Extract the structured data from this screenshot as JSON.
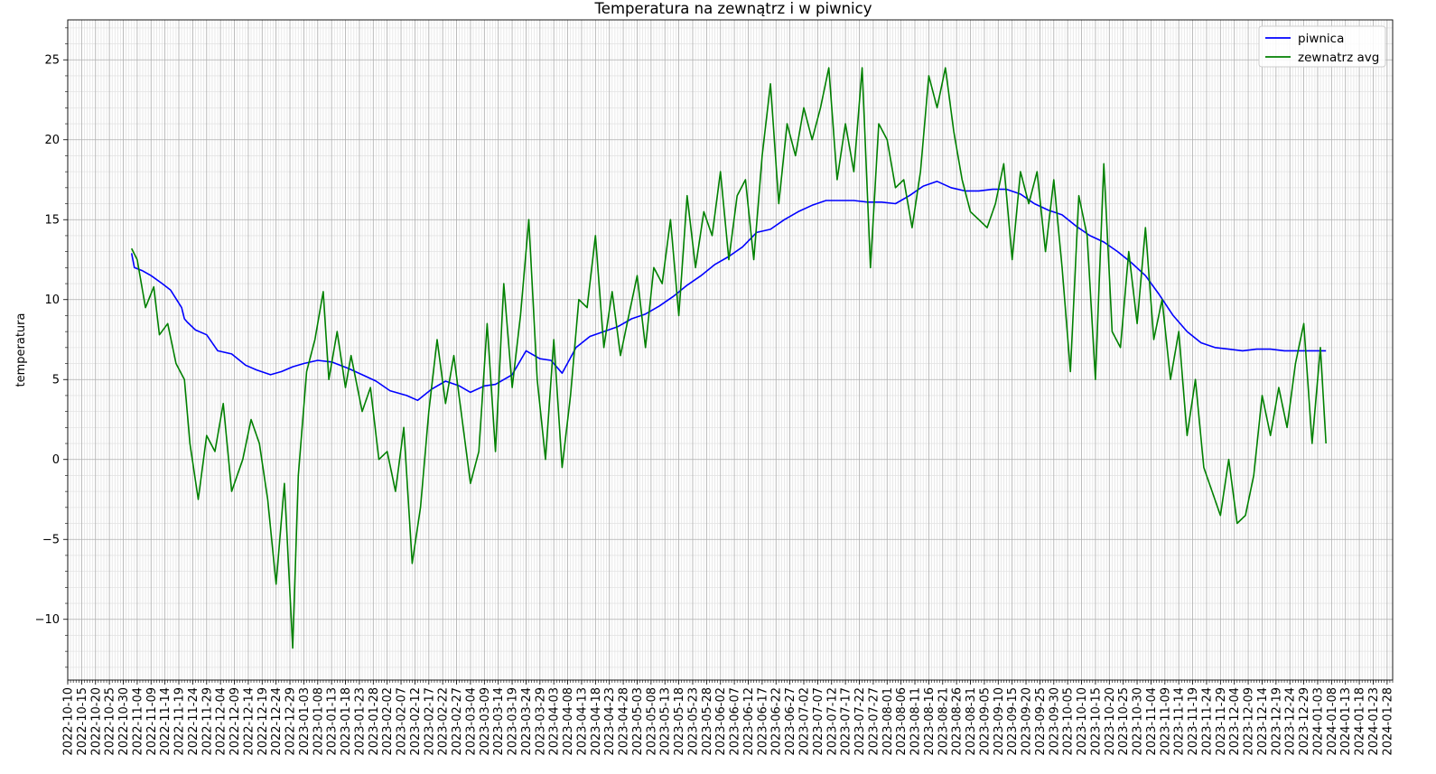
{
  "chart_data": {
    "type": "line",
    "title": "Temperatura na zewnątrz i w piwnicy",
    "xlabel": "",
    "ylabel": "temperatura",
    "x_start": "2022-10-10",
    "x_end": "2024-01-30",
    "xlim": [
      "2022-10-10",
      "2024-01-30"
    ],
    "ylim": [
      -13.8,
      27.5
    ],
    "yticks": [
      -10,
      -5,
      0,
      5,
      10,
      15,
      20,
      25
    ],
    "ytick_labels": [
      "−10",
      "−5",
      "0",
      "5",
      "10",
      "15",
      "20",
      "25"
    ],
    "xtick_labels": [
      "2022-10-10",
      "2022-10-15",
      "2022-10-20",
      "2022-10-25",
      "2022-10-30",
      "2022-11-04",
      "2022-11-09",
      "2022-11-14",
      "2022-11-19",
      "2022-11-24",
      "2022-11-29",
      "2022-12-04",
      "2022-12-09",
      "2022-12-14",
      "2022-12-19",
      "2022-12-24",
      "2022-12-29",
      "2023-01-03",
      "2023-01-08",
      "2023-01-13",
      "2023-01-18",
      "2023-01-23",
      "2023-01-28",
      "2023-02-02",
      "2023-02-07",
      "2023-02-12",
      "2023-02-17",
      "2023-02-22",
      "2023-02-27",
      "2023-03-04",
      "2023-03-09",
      "2023-03-14",
      "2023-03-19",
      "2023-03-24",
      "2023-03-29",
      "2023-04-03",
      "2023-04-08",
      "2023-04-13",
      "2023-04-18",
      "2023-04-23",
      "2023-04-28",
      "2023-05-03",
      "2023-05-08",
      "2023-05-13",
      "2023-05-18",
      "2023-05-23",
      "2023-05-28",
      "2023-06-02",
      "2023-06-07",
      "2023-06-12",
      "2023-06-17",
      "2023-06-22",
      "2023-06-27",
      "2023-07-02",
      "2023-07-07",
      "2023-07-12",
      "2023-07-17",
      "2023-07-22",
      "2023-07-27",
      "2023-08-01",
      "2023-08-06",
      "2023-08-11",
      "2023-08-16",
      "2023-08-21",
      "2023-08-26",
      "2023-08-31",
      "2023-09-05",
      "2023-09-10",
      "2023-09-15",
      "2023-09-20",
      "2023-09-25",
      "2023-09-30",
      "2023-10-05",
      "2023-10-10",
      "2023-10-15",
      "2023-10-20",
      "2023-10-25",
      "2023-10-30",
      "2023-11-04",
      "2023-11-09",
      "2023-11-14",
      "2023-11-19",
      "2023-11-24",
      "2023-11-29",
      "2023-12-04",
      "2023-12-09",
      "2023-12-14",
      "2023-12-19",
      "2023-12-24",
      "2023-12-29",
      "2024-01-03",
      "2024-01-08",
      "2024-01-13",
      "2024-01-18",
      "2024-01-23",
      "2024-01-28"
    ],
    "grid": true,
    "minor_grid": true,
    "legend_position": "top-right",
    "series": [
      {
        "name": "piwnica",
        "color": "#0000ff",
        "x": [
          "2022-11-02",
          "2022-11-03",
          "2022-11-06",
          "2022-11-09",
          "2022-11-13",
          "2022-11-16",
          "2022-11-20",
          "2022-11-21",
          "2022-11-22",
          "2022-11-25",
          "2022-11-29",
          "2022-12-03",
          "2022-12-08",
          "2022-12-13",
          "2022-12-17",
          "2022-12-22",
          "2022-12-26",
          "2022-12-30",
          "2023-01-03",
          "2023-01-08",
          "2023-01-13",
          "2023-01-19",
          "2023-01-24",
          "2023-01-29",
          "2023-02-03",
          "2023-02-09",
          "2023-02-13",
          "2023-02-18",
          "2023-02-23",
          "2023-02-28",
          "2023-03-04",
          "2023-03-09",
          "2023-03-13",
          "2023-03-19",
          "2023-03-24",
          "2023-03-29",
          "2023-04-02",
          "2023-04-06",
          "2023-04-11",
          "2023-04-16",
          "2023-04-21",
          "2023-04-26",
          "2023-05-01",
          "2023-05-06",
          "2023-05-11",
          "2023-05-16",
          "2023-05-21",
          "2023-05-26",
          "2023-05-31",
          "2023-06-05",
          "2023-06-10",
          "2023-06-15",
          "2023-06-20",
          "2023-06-25",
          "2023-06-30",
          "2023-07-05",
          "2023-07-10",
          "2023-07-15",
          "2023-07-20",
          "2023-07-25",
          "2023-07-30",
          "2023-08-04",
          "2023-08-09",
          "2023-08-14",
          "2023-08-19",
          "2023-08-24",
          "2023-08-29",
          "2023-09-03",
          "2023-09-08",
          "2023-09-13",
          "2023-09-18",
          "2023-09-23",
          "2023-09-28",
          "2023-10-03",
          "2023-10-08",
          "2023-10-13",
          "2023-10-18",
          "2023-10-23",
          "2023-10-28",
          "2023-11-02",
          "2023-11-07",
          "2023-11-12",
          "2023-11-17",
          "2023-11-22",
          "2023-11-27",
          "2023-12-02",
          "2023-12-07",
          "2023-12-12",
          "2023-12-17",
          "2023-12-22",
          "2023-12-27",
          "2024-01-01",
          "2024-01-06"
        ],
        "y": [
          12.9,
          12.0,
          11.8,
          11.5,
          11.0,
          10.6,
          9.5,
          8.8,
          8.6,
          8.1,
          7.8,
          6.8,
          6.6,
          5.9,
          5.6,
          5.3,
          5.5,
          5.8,
          6.0,
          6.2,
          6.1,
          5.7,
          5.3,
          4.9,
          4.3,
          4.0,
          3.7,
          4.4,
          4.9,
          4.6,
          4.2,
          4.6,
          4.7,
          5.3,
          6.8,
          6.3,
          6.2,
          5.4,
          7.0,
          7.7,
          8.0,
          8.3,
          8.8,
          9.1,
          9.6,
          10.2,
          10.9,
          11.5,
          12.2,
          12.7,
          13.3,
          14.2,
          14.4,
          15.0,
          15.5,
          15.9,
          16.2,
          16.2,
          16.2,
          16.1,
          16.1,
          16.0,
          16.5,
          17.1,
          17.4,
          17.0,
          16.8,
          16.8,
          16.9,
          16.9,
          16.6,
          16.0,
          15.6,
          15.3,
          14.6,
          14.0,
          13.6,
          13.0,
          12.3,
          11.5,
          10.3,
          9.0,
          8.0,
          7.3,
          7.0,
          6.9,
          6.8,
          6.9,
          6.9,
          6.8,
          6.8,
          6.8,
          6.8
        ]
      },
      {
        "name": "zewnatrz avg",
        "color": "#008000",
        "x": [
          "2022-11-02",
          "2022-11-04",
          "2022-11-07",
          "2022-11-10",
          "2022-11-12",
          "2022-11-15",
          "2022-11-18",
          "2022-11-21",
          "2022-11-23",
          "2022-11-26",
          "2022-11-29",
          "2022-12-02",
          "2022-12-05",
          "2022-12-08",
          "2022-12-12",
          "2022-12-15",
          "2022-12-18",
          "2022-12-21",
          "2022-12-24",
          "2022-12-27",
          "2022-12-30",
          "2023-01-01",
          "2023-01-04",
          "2023-01-07",
          "2023-01-10",
          "2023-01-12",
          "2023-01-15",
          "2023-01-18",
          "2023-01-20",
          "2023-01-24",
          "2023-01-27",
          "2023-01-30",
          "2023-02-02",
          "2023-02-05",
          "2023-02-08",
          "2023-02-11",
          "2023-02-14",
          "2023-02-17",
          "2023-02-20",
          "2023-02-23",
          "2023-02-26",
          "2023-03-01",
          "2023-03-04",
          "2023-03-07",
          "2023-03-10",
          "2023-03-13",
          "2023-03-16",
          "2023-03-19",
          "2023-03-22",
          "2023-03-25",
          "2023-03-28",
          "2023-03-31",
          "2023-04-03",
          "2023-04-06",
          "2023-04-09",
          "2023-04-12",
          "2023-04-15",
          "2023-04-18",
          "2023-04-21",
          "2023-04-24",
          "2023-04-27",
          "2023-04-30",
          "2023-05-03",
          "2023-05-06",
          "2023-05-09",
          "2023-05-12",
          "2023-05-15",
          "2023-05-18",
          "2023-05-21",
          "2023-05-24",
          "2023-05-27",
          "2023-05-30",
          "2023-06-02",
          "2023-06-05",
          "2023-06-08",
          "2023-06-11",
          "2023-06-14",
          "2023-06-17",
          "2023-06-20",
          "2023-06-23",
          "2023-06-26",
          "2023-06-29",
          "2023-07-02",
          "2023-07-05",
          "2023-07-08",
          "2023-07-11",
          "2023-07-14",
          "2023-07-17",
          "2023-07-20",
          "2023-07-23",
          "2023-07-26",
          "2023-07-29",
          "2023-08-01",
          "2023-08-04",
          "2023-08-07",
          "2023-08-10",
          "2023-08-13",
          "2023-08-16",
          "2023-08-19",
          "2023-08-22",
          "2023-08-25",
          "2023-08-28",
          "2023-08-31",
          "2023-09-03",
          "2023-09-06",
          "2023-09-09",
          "2023-09-12",
          "2023-09-15",
          "2023-09-18",
          "2023-09-21",
          "2023-09-24",
          "2023-09-27",
          "2023-09-30",
          "2023-10-03",
          "2023-10-06",
          "2023-10-09",
          "2023-10-12",
          "2023-10-15",
          "2023-10-18",
          "2023-10-21",
          "2023-10-24",
          "2023-10-27",
          "2023-10-30",
          "2023-11-02",
          "2023-11-05",
          "2023-11-08",
          "2023-11-11",
          "2023-11-14",
          "2023-11-17",
          "2023-11-20",
          "2023-11-23",
          "2023-11-26",
          "2023-11-29",
          "2023-12-02",
          "2023-12-05",
          "2023-12-08",
          "2023-12-11",
          "2023-12-14",
          "2023-12-17",
          "2023-12-20",
          "2023-12-23",
          "2023-12-26",
          "2023-12-29",
          "2024-01-01",
          "2024-01-04",
          "2024-01-06"
        ],
        "y": [
          13.2,
          12.5,
          9.5,
          10.8,
          7.8,
          8.5,
          6.0,
          5.0,
          1.0,
          -2.5,
          1.5,
          0.5,
          3.5,
          -2.0,
          0.0,
          2.5,
          1.0,
          -2.5,
          -7.8,
          -1.5,
          -11.8,
          -1.0,
          5.5,
          7.5,
          10.5,
          5.0,
          8.0,
          4.5,
          6.5,
          3.0,
          4.5,
          0.0,
          0.5,
          -2.0,
          2.0,
          -6.5,
          -3.0,
          3.0,
          7.5,
          3.5,
          6.5,
          2.5,
          -1.5,
          0.5,
          8.5,
          0.5,
          11.0,
          4.5,
          9.0,
          15.0,
          5.0,
          0.0,
          7.5,
          -0.5,
          4.0,
          10.0,
          9.5,
          14.0,
          7.0,
          10.5,
          6.5,
          9.0,
          11.5,
          7.0,
          12.0,
          11.0,
          15.0,
          9.0,
          16.5,
          12.0,
          15.5,
          14.0,
          18.0,
          12.5,
          16.5,
          17.5,
          12.5,
          19.0,
          23.5,
          16.0,
          21.0,
          19.0,
          22.0,
          20.0,
          22.0,
          24.5,
          17.5,
          21.0,
          18.0,
          24.5,
          12.0,
          21.0,
          20.0,
          17.0,
          17.5,
          14.5,
          18.0,
          24.0,
          22.0,
          24.5,
          20.5,
          17.5,
          15.5,
          15.0,
          14.5,
          16.0,
          18.5,
          12.5,
          18.0,
          16.0,
          18.0,
          13.0,
          17.5,
          12.0,
          5.5,
          16.5,
          14.0,
          5.0,
          18.5,
          8.0,
          7.0,
          13.0,
          8.5,
          14.5,
          7.5,
          10.0,
          5.0,
          8.0,
          1.5,
          5.0,
          -0.5,
          -2.0,
          -3.5,
          0.0,
          -4.0,
          -3.5,
          -1.0,
          4.0,
          1.5,
          4.5,
          2.0,
          6.0,
          8.5,
          1.0,
          7.0,
          1.0
        ]
      }
    ]
  }
}
